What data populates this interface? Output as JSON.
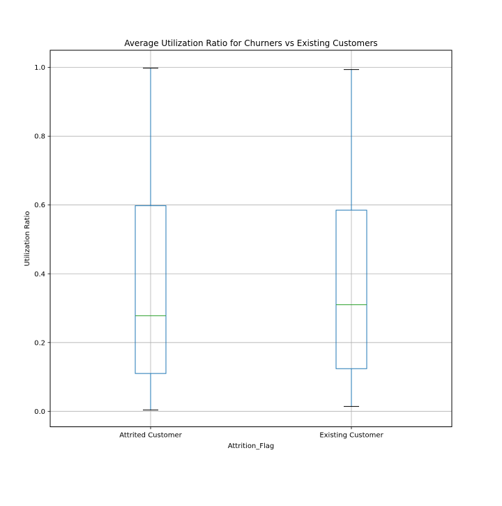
{
  "chart_data": {
    "type": "box",
    "title": "Average Utilization Ratio for Churners vs Existing Customers",
    "xlabel": "Attrition_Flag",
    "ylabel": "Utilization Ratio",
    "categories": [
      "Attrited Customer",
      "Existing Customer"
    ],
    "boxes": [
      {
        "category": "Attrited Customer",
        "whisker_low": 0.004,
        "q1": 0.11,
        "median": 0.278,
        "q3": 0.598,
        "whisker_high": 0.998
      },
      {
        "category": "Existing Customer",
        "whisker_low": 0.014,
        "q1": 0.124,
        "median": 0.31,
        "q3": 0.585,
        "whisker_high": 0.994
      }
    ],
    "ylim": [
      -0.045,
      1.05
    ],
    "yticks": [
      0.0,
      0.2,
      0.4,
      0.6,
      0.8,
      1.0
    ],
    "ytick_labels": [
      "0.0",
      "0.2",
      "0.4",
      "0.6",
      "0.8",
      "1.0"
    ],
    "grid": true,
    "colors": {
      "box": "#1f77b4",
      "median": "#2ca02c",
      "cap": "#000000",
      "grid": "#b0b0b0"
    }
  }
}
